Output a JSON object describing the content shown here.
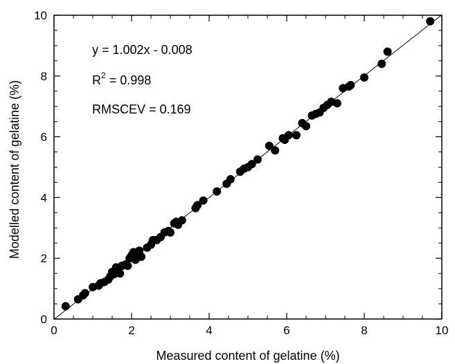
{
  "chart_data": {
    "type": "scatter",
    "title": "",
    "xlabel": "Measured content of gelatine (%)",
    "ylabel": "Modelled content of gelatine (%)",
    "xlim": [
      0,
      10
    ],
    "ylim": [
      0,
      10
    ],
    "xticks": [
      "0",
      "2",
      "4",
      "6",
      "8",
      "10"
    ],
    "yticks": [
      "0",
      "2",
      "4",
      "6",
      "8",
      "10"
    ],
    "grid": false,
    "fit_line": {
      "slope": 1.002,
      "intercept": -0.008
    },
    "annotations": {
      "equation": "y = 1.002x - 0.008",
      "r2_prefix": "R",
      "r2_sup": "2",
      "r2_value": " = 0.998",
      "rmscev": "RMSCEV = 0.169"
    },
    "marker_color": "#000000",
    "points": [
      [
        0.3,
        0.42
      ],
      [
        0.62,
        0.65
      ],
      [
        0.75,
        0.78
      ],
      [
        0.8,
        0.85
      ],
      [
        1.0,
        1.05
      ],
      [
        1.15,
        1.1
      ],
      [
        1.2,
        1.18
      ],
      [
        1.3,
        1.22
      ],
      [
        1.4,
        1.3
      ],
      [
        1.45,
        1.4
      ],
      [
        1.5,
        1.55
      ],
      [
        1.55,
        1.48
      ],
      [
        1.6,
        1.7
      ],
      [
        1.65,
        1.65
      ],
      [
        1.7,
        1.5
      ],
      [
        1.75,
        1.75
      ],
      [
        1.85,
        1.8
      ],
      [
        1.9,
        1.75
      ],
      [
        1.95,
        2.0
      ],
      [
        2.0,
        2.1
      ],
      [
        2.05,
        2.2
      ],
      [
        2.1,
        1.95
      ],
      [
        2.15,
        2.15
      ],
      [
        2.2,
        2.25
      ],
      [
        2.25,
        2.05
      ],
      [
        2.4,
        2.35
      ],
      [
        2.5,
        2.45
      ],
      [
        2.55,
        2.6
      ],
      [
        2.65,
        2.6
      ],
      [
        2.75,
        2.7
      ],
      [
        2.85,
        2.85
      ],
      [
        2.95,
        2.9
      ],
      [
        3.0,
        2.85
      ],
      [
        3.1,
        3.15
      ],
      [
        3.15,
        3.2
      ],
      [
        3.2,
        3.1
      ],
      [
        3.3,
        3.25
      ],
      [
        3.65,
        3.65
      ],
      [
        3.7,
        3.75
      ],
      [
        3.85,
        3.9
      ],
      [
        4.2,
        4.2
      ],
      [
        4.45,
        4.45
      ],
      [
        4.55,
        4.6
      ],
      [
        4.8,
        4.85
      ],
      [
        4.9,
        4.95
      ],
      [
        5.0,
        5.0
      ],
      [
        5.1,
        5.1
      ],
      [
        5.25,
        5.25
      ],
      [
        5.55,
        5.7
      ],
      [
        5.7,
        5.55
      ],
      [
        5.9,
        5.95
      ],
      [
        5.95,
        5.9
      ],
      [
        6.05,
        6.05
      ],
      [
        6.25,
        6.05
      ],
      [
        6.4,
        6.45
      ],
      [
        6.5,
        6.35
      ],
      [
        6.65,
        6.7
      ],
      [
        6.75,
        6.75
      ],
      [
        6.85,
        6.8
      ],
      [
        6.95,
        6.95
      ],
      [
        7.05,
        7.05
      ],
      [
        7.15,
        7.15
      ],
      [
        7.3,
        7.1
      ],
      [
        7.45,
        7.6
      ],
      [
        7.6,
        7.65
      ],
      [
        7.65,
        7.7
      ],
      [
        8.0,
        7.95
      ],
      [
        8.45,
        8.4
      ],
      [
        8.6,
        8.8
      ],
      [
        9.7,
        9.8
      ]
    ]
  }
}
